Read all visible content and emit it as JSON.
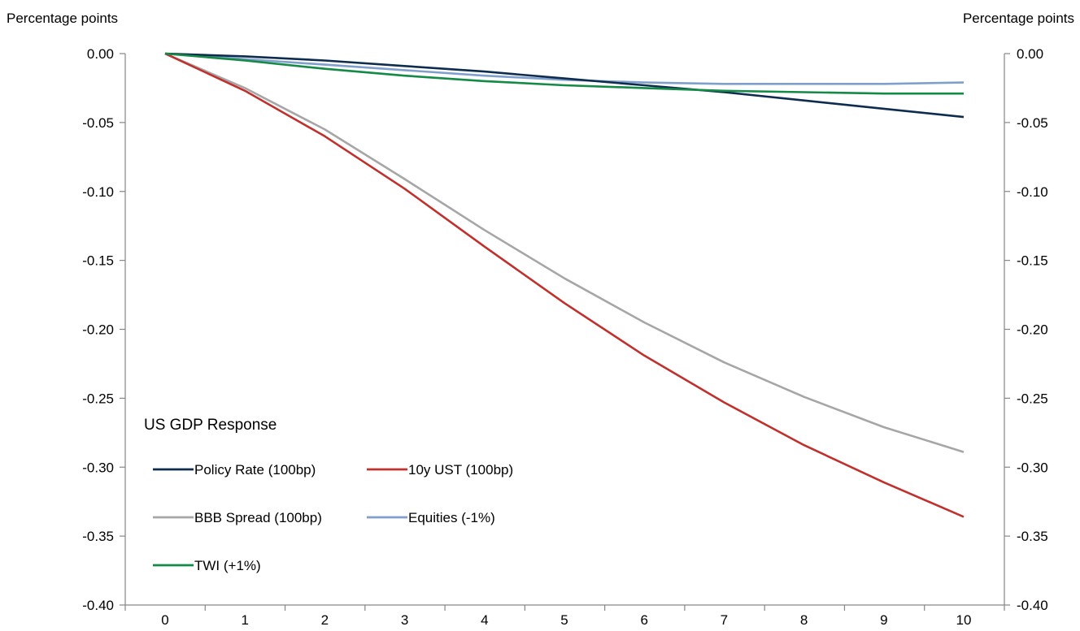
{
  "chart_data": {
    "type": "line",
    "title": "",
    "left_axis_unit": "Percentage points",
    "right_axis_unit": "Percentage points",
    "xlabel": "",
    "ylabel": "",
    "x": [
      0,
      1,
      2,
      3,
      4,
      5,
      6,
      7,
      8,
      9,
      10
    ],
    "x_tick_labels": [
      "0",
      "1",
      "2",
      "3",
      "4",
      "5",
      "6",
      "7",
      "8",
      "9",
      "10"
    ],
    "ylim": [
      -0.4,
      0.0
    ],
    "y_tick_labels": [
      "0.00",
      "-0.05",
      "-0.10",
      "-0.15",
      "-0.20",
      "-0.25",
      "-0.30",
      "-0.35",
      "-0.40"
    ],
    "y_tick_values": [
      0.0,
      -0.05,
      -0.1,
      -0.15,
      -0.2,
      -0.25,
      -0.3,
      -0.35,
      -0.4
    ],
    "grid": false,
    "legend": {
      "title": "US GDP Response",
      "placement": "bottom-left inside plot"
    },
    "series": [
      {
        "name": "Policy Rate (100bp)",
        "color": "#0E2C4E",
        "values": [
          0.0,
          -0.002,
          -0.005,
          -0.009,
          -0.013,
          -0.018,
          -0.023,
          -0.028,
          -0.034,
          -0.04,
          -0.046
        ]
      },
      {
        "name": "10y UST (100bp)",
        "color": "#C0312D",
        "values": [
          0.0,
          -0.027,
          -0.06,
          -0.098,
          -0.14,
          -0.181,
          -0.219,
          -0.253,
          -0.284,
          -0.311,
          -0.336
        ]
      },
      {
        "name": "BBB Spread (100bp)",
        "color": "#A6A6A6",
        "values": [
          0.0,
          -0.025,
          -0.055,
          -0.091,
          -0.128,
          -0.163,
          -0.195,
          -0.224,
          -0.249,
          -0.271,
          -0.289
        ]
      },
      {
        "name": "Equities (-1%)",
        "color": "#7F9FCC",
        "values": [
          0.0,
          -0.004,
          -0.008,
          -0.012,
          -0.016,
          -0.019,
          -0.021,
          -0.022,
          -0.022,
          -0.022,
          -0.021
        ]
      },
      {
        "name": "TWI (+1%)",
        "color": "#138A45",
        "values": [
          0.0,
          -0.005,
          -0.011,
          -0.016,
          -0.02,
          -0.023,
          -0.025,
          -0.027,
          -0.028,
          -0.029,
          -0.029
        ]
      }
    ]
  }
}
